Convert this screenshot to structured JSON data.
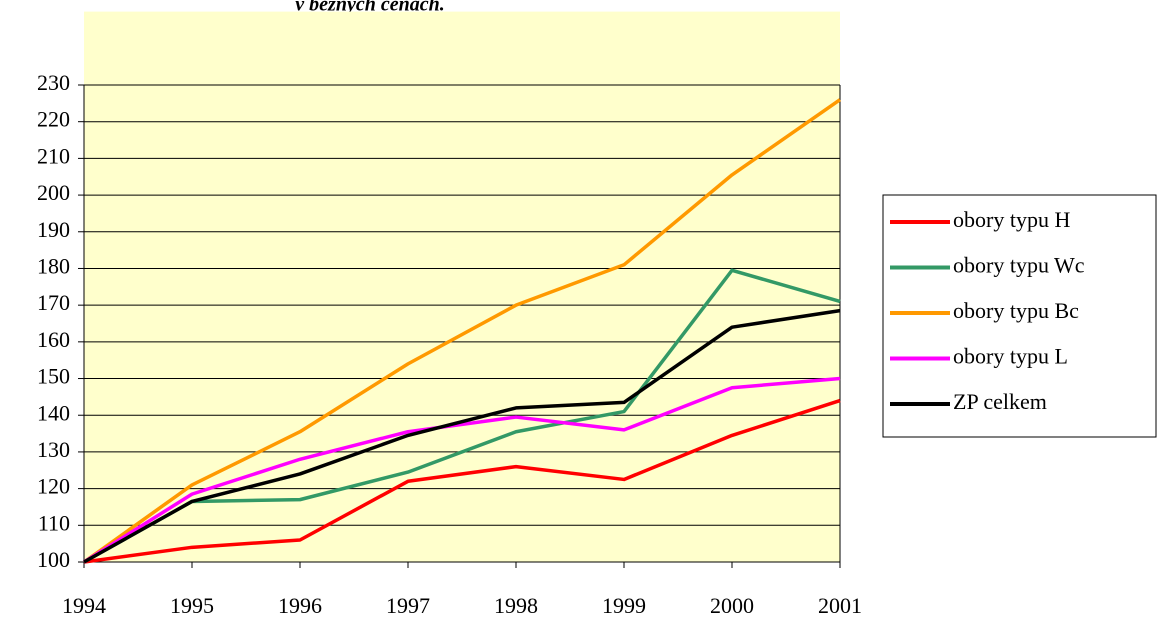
{
  "chart_data": {
    "type": "line",
    "title": "v běžných cenách.",
    "categories": [
      "1994",
      "1995",
      "1996",
      "1997",
      "1998",
      "1999",
      "2000",
      "2001"
    ],
    "series": [
      {
        "name": "obory typu H",
        "color": "#ff0000",
        "values": [
          100,
          104,
          106,
          122,
          126,
          122.5,
          134.5,
          144
        ]
      },
      {
        "name": "obory typu Wc",
        "color": "#339966",
        "values": [
          100,
          116.5,
          117,
          124.5,
          135.5,
          141,
          179.5,
          171
        ]
      },
      {
        "name": "obory typu Bc",
        "color": "#ff9900",
        "values": [
          100,
          121,
          135.5,
          154,
          170,
          181,
          205.5,
          226
        ]
      },
      {
        "name": "obory typu L",
        "color": "#ff00ff",
        "values": [
          100,
          118.5,
          128,
          135.5,
          139.5,
          136,
          147.5,
          150
        ]
      },
      {
        "name": "ZP celkem",
        "color": "#000000",
        "values": [
          100,
          116.5,
          124,
          134.5,
          142,
          143.5,
          164,
          168.5
        ]
      }
    ],
    "ylim": [
      100,
      250
    ],
    "yticks": [
      100,
      110,
      120,
      130,
      140,
      150,
      160,
      170,
      180,
      190,
      200,
      210,
      220,
      230
    ],
    "grid": true,
    "legend": "right",
    "background": "#ffffcc"
  }
}
